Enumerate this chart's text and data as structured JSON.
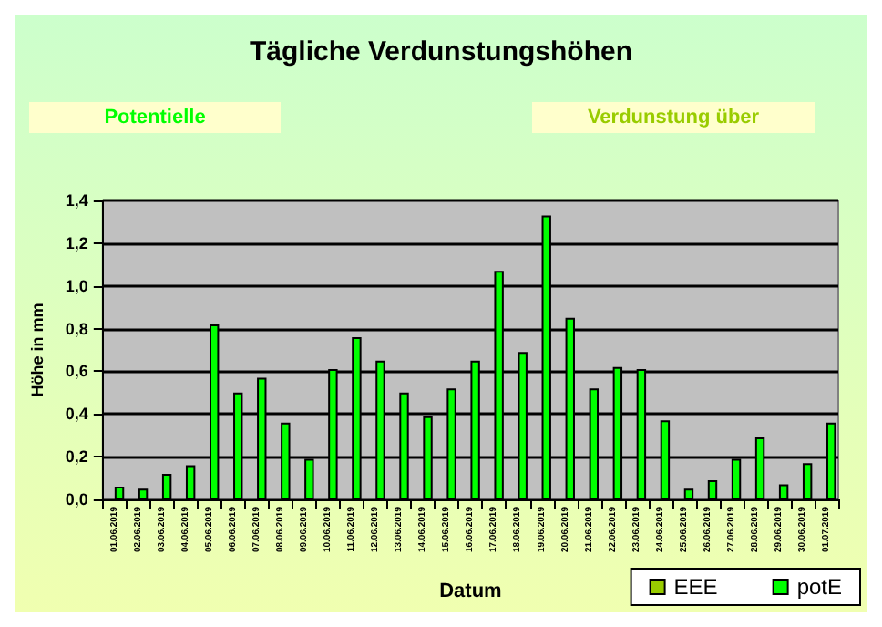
{
  "chart_data": {
    "type": "bar",
    "title": "Tägliche Verdunstungshöhen",
    "annotations": [
      "Potentielle",
      "Verdunstung über"
    ],
    "xlabel": "Datum",
    "ylabel": "Höhe in mm",
    "categories": [
      "01.06.2019",
      "02.06.2019",
      "03.06.2019",
      "04.06.2019",
      "05.06.2019",
      "06.06.2019",
      "07.06.2019",
      "08.06.2019",
      "09.06.2019",
      "10.06.2019",
      "11.06.2019",
      "12.06.2019",
      "13.06.2019",
      "14.06.2019",
      "15.06.2019",
      "16.06.2019",
      "17.06.2019",
      "18.06.2019",
      "19.06.2019",
      "20.06.2019",
      "21.06.2019",
      "22.06.2019",
      "23.06.2019",
      "24.06.2019",
      "25.06.2019",
      "26.06.2019",
      "27.06.2019",
      "28.06.2019",
      "29.06.2019",
      "30.06.2019",
      "01.07.2019"
    ],
    "series": [
      {
        "name": "EEE",
        "color": "#99cc00",
        "values": [
          null,
          null,
          null,
          null,
          null,
          null,
          null,
          null,
          null,
          null,
          null,
          null,
          null,
          null,
          null,
          null,
          null,
          null,
          null,
          null,
          null,
          null,
          null,
          null,
          null,
          null,
          null,
          null,
          null,
          null,
          null
        ]
      },
      {
        "name": "potE",
        "color": "#00ff00",
        "values": [
          0.06,
          0.05,
          0.12,
          0.16,
          0.82,
          0.5,
          0.57,
          0.36,
          0.19,
          0.61,
          0.76,
          0.65,
          0.5,
          0.39,
          0.52,
          0.65,
          1.07,
          0.69,
          1.33,
          0.85,
          0.52,
          0.62,
          0.61,
          0.37,
          0.05,
          0.09,
          0.19,
          0.29,
          0.07,
          0.17,
          0.36
        ]
      }
    ],
    "ylim": [
      0,
      1.4
    ],
    "yticks": [
      {
        "value": 0,
        "label": "0,0"
      },
      {
        "value": 0.2,
        "label": "0,2"
      },
      {
        "value": 0.4,
        "label": "0,4"
      },
      {
        "value": 0.6,
        "label": "0,6"
      },
      {
        "value": 0.8,
        "label": "0,8"
      },
      {
        "value": 1.0,
        "label": "1,0"
      },
      {
        "value": 1.2,
        "label": "1,2"
      },
      {
        "value": 1.4,
        "label": "1,4"
      }
    ],
    "grid": "y",
    "legend": "bottom right"
  }
}
